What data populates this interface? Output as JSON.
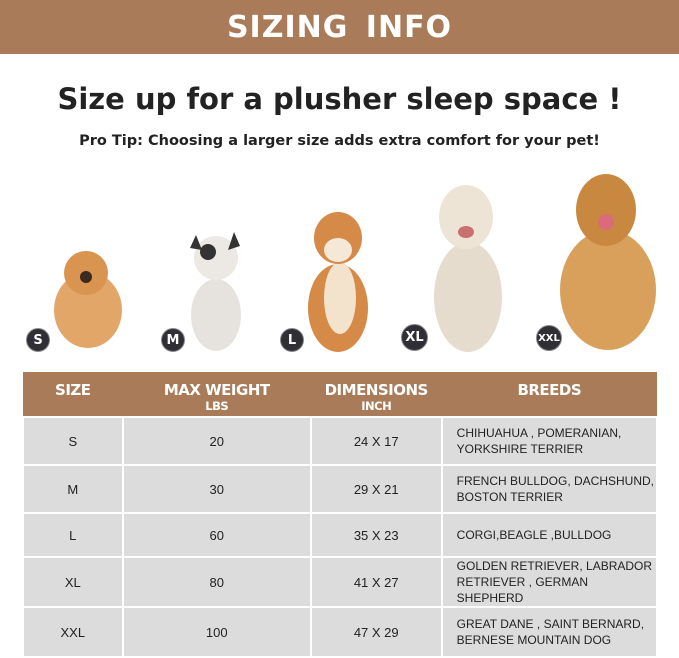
{
  "banner": {
    "title": "SIZING INFO"
  },
  "headline": "Size up for a plusher sleep space !",
  "pro_tip": "Pro Tip: Choosing a larger size adds extra comfort for your pet!",
  "colors": {
    "accent": "#a97b58",
    "badge": "#2f2f35",
    "row_bg": "#dcdcdc"
  },
  "dogs": [
    {
      "badge": "S",
      "image": "pomeranian-photo"
    },
    {
      "badge": "M",
      "image": "french-bulldog-photo"
    },
    {
      "badge": "L",
      "image": "shiba-inu-photo"
    },
    {
      "badge": "XL",
      "image": "labrador-photo"
    },
    {
      "badge": "XXL",
      "image": "golden-retriever-photo"
    }
  ],
  "table": {
    "headers": [
      {
        "label": "SIZE",
        "unit": ""
      },
      {
        "label": "MAX WEIGHT",
        "unit": "LBS"
      },
      {
        "label": "DIMENSIONS",
        "unit": "INCH"
      },
      {
        "label": "BREEDS",
        "unit": ""
      }
    ],
    "rows": [
      {
        "size": "S",
        "weight": "20",
        "dimensions": "24 X 17",
        "breeds": "CHIHUAHUA , POMERANIAN, YORKSHIRE TERRIER"
      },
      {
        "size": "M",
        "weight": "30",
        "dimensions": "29 X 21",
        "breeds": "FRENCH BULLDOG, DACHSHUND, BOSTON TERRIER"
      },
      {
        "size": "L",
        "weight": "60",
        "dimensions": "35 X 23",
        "breeds": "CORGI,BEAGLE ,BULLDOG"
      },
      {
        "size": "XL",
        "weight": "80",
        "dimensions": "41 X 27",
        "breeds": "GOLDEN RETRIEVER, LABRADOR RETRIEVER , GERMAN SHEPHERD"
      },
      {
        "size": "XXL",
        "weight": "100",
        "dimensions": "47 X 29",
        "breeds": "GREAT DANE , SAINT BERNARD, BERNESE MOUNTAIN DOG"
      }
    ]
  }
}
